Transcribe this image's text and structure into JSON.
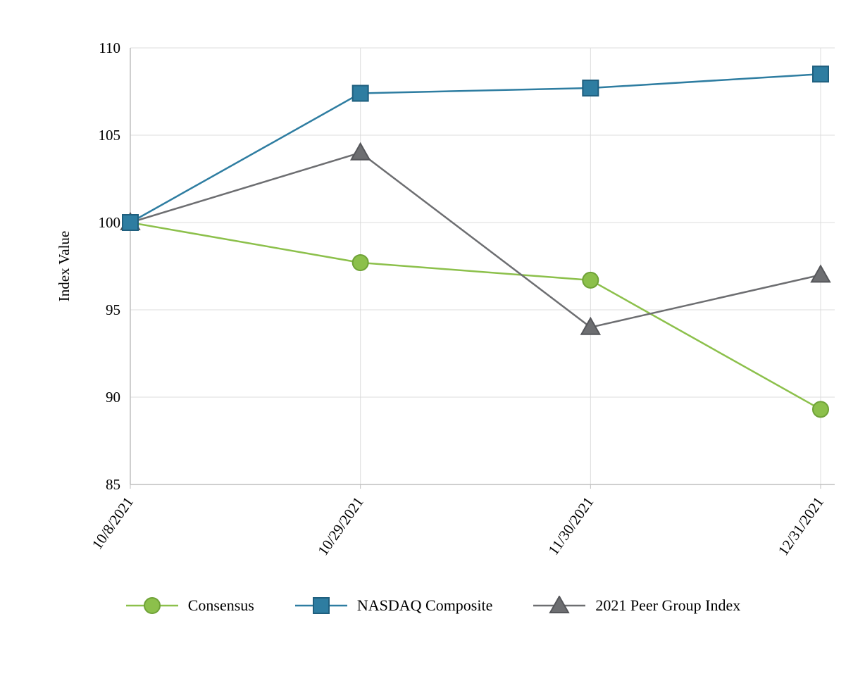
{
  "chart_data": {
    "type": "line",
    "title": "",
    "xlabel": "",
    "ylabel": "Index Value",
    "x_categories": [
      "10/8/2021",
      "10/29/2021",
      "11/30/2021",
      "12/31/2021"
    ],
    "y_ticks": [
      85,
      90,
      95,
      100,
      105,
      110
    ],
    "ylim": [
      85,
      110
    ],
    "grid": true,
    "legend_position": "bottom",
    "draw_order": [
      0,
      2,
      1
    ],
    "series": [
      {
        "name": "Consensus",
        "marker": "circle",
        "color": "#8CC04B",
        "stroke": "#6FA237",
        "values": [
          100,
          97.7,
          96.7,
          89.3
        ]
      },
      {
        "name": "NASDAQ Composite",
        "marker": "square",
        "color": "#2E7DA1",
        "stroke": "#1F5F7E",
        "values": [
          100,
          107.4,
          107.7,
          108.5
        ]
      },
      {
        "name": "2021 Peer Group Index",
        "marker": "triangle",
        "color": "#6D6E71",
        "stroke": "#55565A",
        "values": [
          100,
          104,
          94,
          97
        ]
      }
    ]
  },
  "colors": {
    "grid": "#DCDCDC",
    "axis": "#BFBFBF",
    "text": "#000000",
    "background": "#FFFFFF"
  }
}
